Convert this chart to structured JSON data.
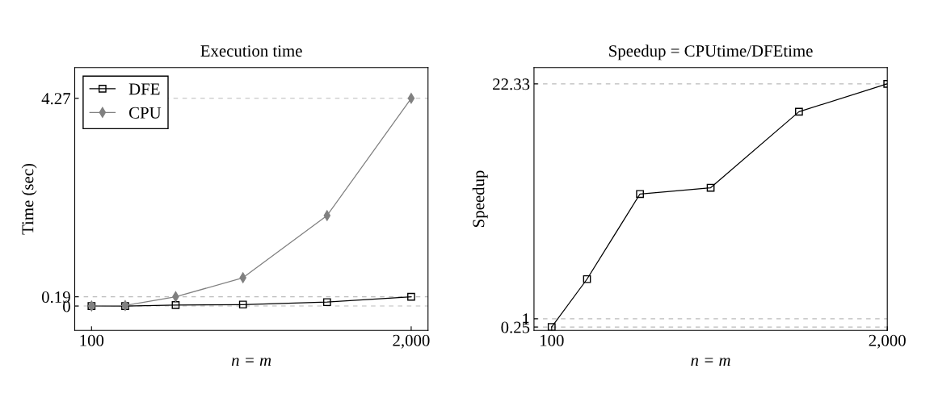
{
  "chart_data": [
    {
      "type": "line",
      "title": "Execution time",
      "xlabel": "n = m",
      "ylabel": "Time (sec)",
      "x": [
        100,
        300,
        600,
        1000,
        1500,
        2000
      ],
      "series": [
        {
          "name": "DFE",
          "color": "#000000",
          "marker": "square",
          "values": [
            0,
            0,
            0.02,
            0.03,
            0.08,
            0.19
          ]
        },
        {
          "name": "CPU",
          "color": "#808080",
          "marker": "diamond",
          "values": [
            0,
            0.01,
            0.19,
            0.58,
            1.86,
            4.27
          ]
        }
      ],
      "xlim": [
        0,
        2100
      ],
      "xticks": [
        100,
        {
          "value": 2000,
          "label": "2,000"
        }
      ],
      "ylim": [
        -0.5,
        4.9
      ],
      "yticks": [
        0,
        0.19,
        4.27
      ],
      "grid": "y",
      "legend": "top left",
      "line_style": "solid"
    },
    {
      "type": "line",
      "title": "Speedup = CPUtime/DFEtime",
      "xlabel": "n = m",
      "ylabel": "Speedup",
      "x": [
        100,
        300,
        600,
        1000,
        1500,
        2000
      ],
      "series": [
        {
          "color": "#000000",
          "marker": "square",
          "values": [
            0.25,
            4.6,
            12.33,
            12.9,
            19.8,
            22.33
          ]
        }
      ],
      "xlim": [
        0,
        2000
      ],
      "xticks": [
        100,
        {
          "value": 2000,
          "label": "2,000"
        }
      ],
      "ylim": [
        -0.05,
        23.8
      ],
      "yticks": [
        0.25,
        1,
        22.33
      ],
      "grid": "y",
      "legend": false,
      "line_style": "solid"
    }
  ]
}
